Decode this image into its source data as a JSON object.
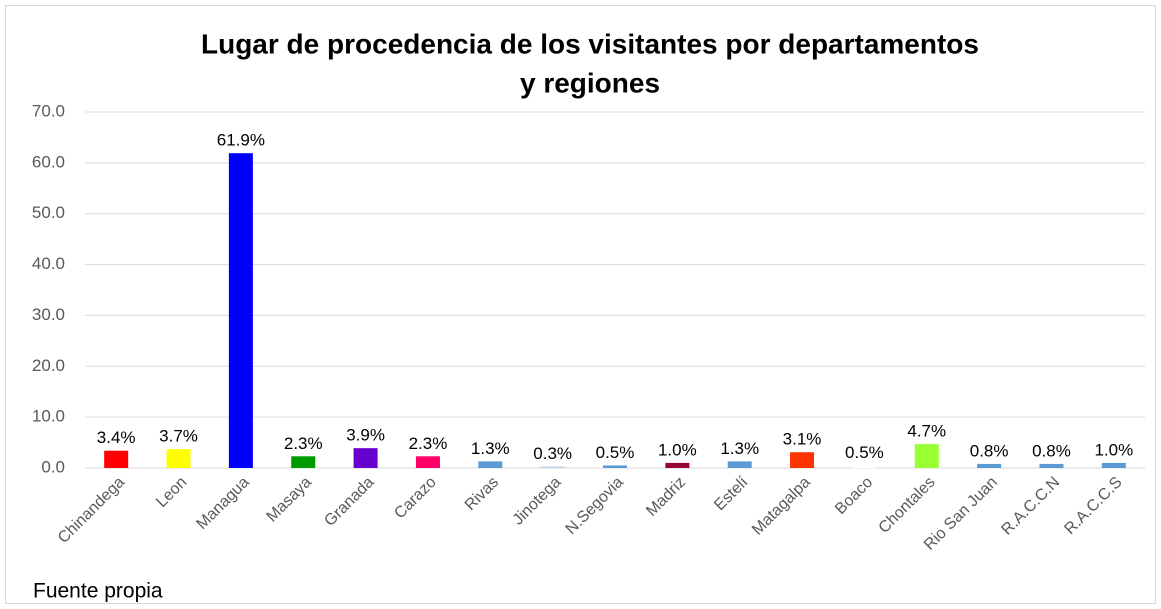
{
  "chart_data": {
    "type": "bar",
    "title": [
      "Lugar de procedencia de los visitantes por departamentos",
      "y regiones"
    ],
    "categories": [
      "Chinandega",
      "Leon",
      "Managua",
      "Masaya",
      "Granada",
      "Carazo",
      "Rivas",
      "Jinotega",
      "N.Segovia",
      "Madriz",
      "Estelí",
      "Matagalpa",
      "Boaco",
      "Chontales",
      "Rio San Juan",
      "R.A.C.C.N",
      "R.A.C.C.S"
    ],
    "values": [
      3.4,
      3.7,
      61.9,
      2.3,
      3.9,
      2.3,
      1.3,
      0.3,
      0.5,
      1.0,
      1.3,
      3.1,
      0.5,
      4.7,
      0.8,
      0.8,
      1.0
    ],
    "value_labels": [
      "3.4%",
      "3.7%",
      "61.9%",
      "2.3%",
      "3.9%",
      "2.3%",
      "1.3%",
      "0.3%",
      "0.5%",
      "1.0%",
      "1.3%",
      "3.1%",
      "0.5%",
      "4.7%",
      "0.8%",
      "0.8%",
      "1.0%"
    ],
    "colors": [
      "#ff0000",
      "#ffff00",
      "#0000ff",
      "#009900",
      "#6600cc",
      "#ff0066",
      "#5b9bd5",
      "#bdd7ee",
      "#5b9bd5",
      "#990033",
      "#5b9bd5",
      "#ff3300",
      "#ffffff",
      "#99ff33",
      "#5b9bd5",
      "#5b9bd5",
      "#5b9bd5"
    ],
    "ylim": [
      0,
      70
    ],
    "yticks": [
      {
        "value": 0,
        "label": "0.0"
      },
      {
        "value": 10,
        "label": "10.0"
      },
      {
        "value": 20,
        "label": "20.0"
      },
      {
        "value": 30,
        "label": "30.0"
      },
      {
        "value": 40,
        "label": "40.0"
      },
      {
        "value": 50,
        "label": "50.0"
      },
      {
        "value": 60,
        "label": "60.0"
      },
      {
        "value": 70,
        "label": "70.0"
      }
    ],
    "grid": true,
    "source": "Fuente propia"
  }
}
